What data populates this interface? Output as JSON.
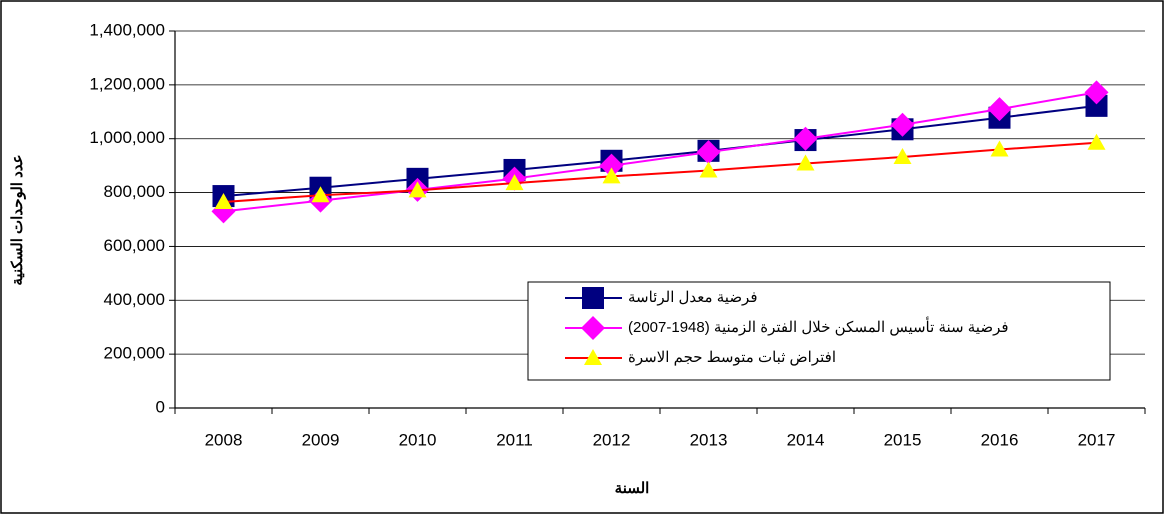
{
  "chart_data": {
    "type": "line",
    "x_label": "السنة",
    "y_label": "عدد الوحدات السكنية",
    "categories": [
      "2008",
      "2009",
      "2010",
      "2011",
      "2012",
      "2013",
      "2014",
      "2015",
      "2016",
      "2017"
    ],
    "series": [
      {
        "name": "فرضية معدل الرئاسة",
        "color": "#000080",
        "marker": "square",
        "values": [
          787000,
          818000,
          851000,
          884000,
          918000,
          955000,
          995000,
          1035000,
          1078000,
          1122000
        ]
      },
      {
        "name": "فرضية سنة تأسيس المسكن خلال الفترة الزمنية (1948-2007)",
        "color": "#ff00ff",
        "marker": "diamond",
        "values": [
          730000,
          770000,
          810000,
          852000,
          900000,
          950000,
          1000000,
          1052000,
          1110000,
          1172000
        ]
      },
      {
        "name": "افتراض ثبات متوسط حجم الاسرة",
        "color": "#ff0000",
        "marker": "triangle",
        "marker_color": "#ffff00",
        "values": [
          765000,
          790000,
          808000,
          835000,
          860000,
          882000,
          908000,
          932000,
          960000,
          985000
        ]
      }
    ],
    "ylim": [
      0,
      1400000
    ],
    "yticks": [
      {
        "value": 0,
        "label": "0"
      },
      {
        "value": 200000,
        "label": "200,000"
      },
      {
        "value": 400000,
        "label": "400,000"
      },
      {
        "value": 600000,
        "label": "600,000"
      },
      {
        "value": 800000,
        "label": "800,000"
      },
      {
        "value": 1000000,
        "label": "1,000,000"
      },
      {
        "value": 1200000,
        "label": "1,200,000"
      },
      {
        "value": 1400000,
        "label": "1,400,000"
      }
    ],
    "grid": true
  }
}
